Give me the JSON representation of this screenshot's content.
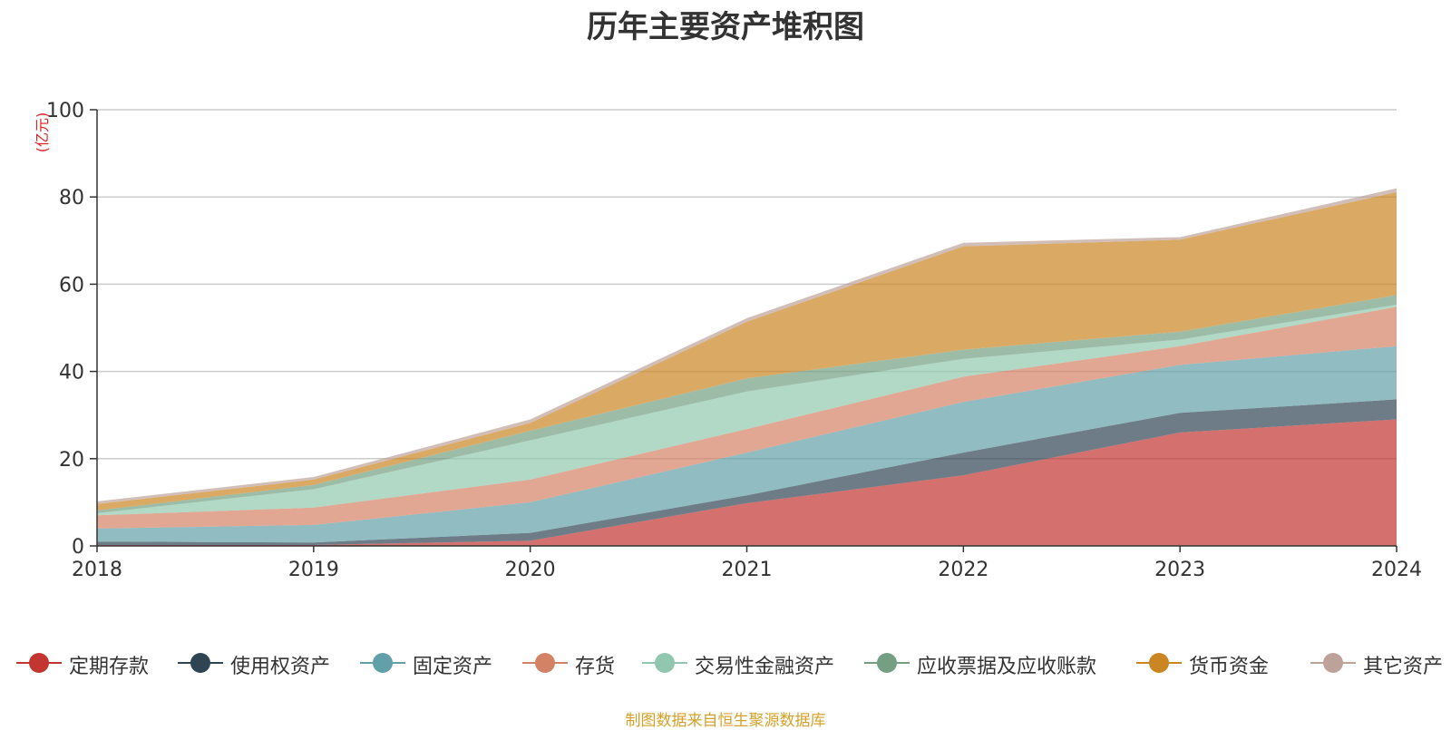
{
  "chart_data": {
    "type": "area",
    "stacked": true,
    "title": "历年主要资产堆积图",
    "ylabel": "(亿元)",
    "xlabel": "",
    "categories": [
      "2018",
      "2019",
      "2020",
      "2021",
      "2022",
      "2023",
      "2024"
    ],
    "ylim": [
      0,
      100
    ],
    "yticks": [
      0,
      20,
      40,
      60,
      80,
      100
    ],
    "grid": true,
    "legend_position": "bottom",
    "series": [
      {
        "name": "定期存款",
        "color": "#c23531",
        "values": [
          0.2,
          0.2,
          1.2,
          9.8,
          16.2,
          26.0,
          29.0
        ]
      },
      {
        "name": "使用权资产",
        "color": "#2f4554",
        "values": [
          0.8,
          0.6,
          1.8,
          1.8,
          5.2,
          4.5,
          4.6
        ]
      },
      {
        "name": "固定资产",
        "color": "#61a0a8",
        "values": [
          3.0,
          4.0,
          7.0,
          9.8,
          11.6,
          11.0,
          12.2
        ]
      },
      {
        "name": "存货",
        "color": "#d48265",
        "values": [
          3.0,
          4.0,
          5.2,
          5.4,
          5.8,
          4.3,
          9.0
        ]
      },
      {
        "name": "交易性金融资产",
        "color": "#91c7ae",
        "values": [
          0.5,
          4.2,
          9.0,
          8.6,
          4.1,
          1.5,
          0.5
        ]
      },
      {
        "name": "应收票据及应收账款",
        "color": "#749f83",
        "values": [
          0.6,
          1.0,
          2.2,
          3.0,
          2.1,
          1.8,
          2.2
        ]
      },
      {
        "name": "货币资金",
        "color": "#ca8622",
        "values": [
          1.5,
          1.2,
          1.8,
          13.0,
          23.7,
          21.1,
          23.6
        ]
      },
      {
        "name": "其它资产",
        "color": "#bda29a",
        "values": [
          0.6,
          0.6,
          0.8,
          0.8,
          0.8,
          0.6,
          0.9
        ]
      }
    ]
  },
  "source_note": "制图数据来自恒生聚源数据库"
}
